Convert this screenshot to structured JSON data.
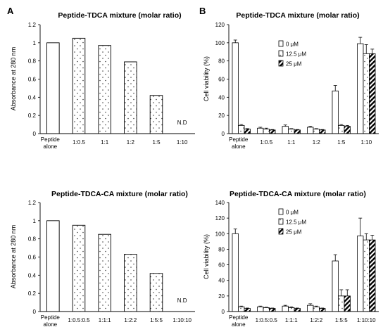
{
  "panel_labels": [
    "A",
    "B"
  ],
  "chart_data": [
    {
      "id": "A-top",
      "type": "bar",
      "title": "Peptide-TDCA mixture (molar ratio)",
      "ylabel": "Absorbance at 280 nm",
      "xlabel": "",
      "ylim": [
        0,
        1.2
      ],
      "yticks": [
        "0",
        "0.2",
        "0.4",
        "0.6",
        "0.8",
        "1",
        "1.2"
      ],
      "categories": [
        "Peptide alone",
        "1:0.5",
        "1:1",
        "1:2",
        "1:5",
        "1:10"
      ],
      "values": [
        1.0,
        1.05,
        0.97,
        0.79,
        0.42,
        null
      ],
      "patterns": [
        "plain",
        "dots",
        "dots",
        "dots",
        "dots",
        "none"
      ],
      "annotation": "N.D"
    },
    {
      "id": "B-top",
      "type": "bar",
      "title": "Peptide-TDCA mixture (molar ratio)",
      "ylabel": "Cell viability (%)",
      "xlabel": "",
      "ylim": [
        0,
        120
      ],
      "yticks": [
        "0",
        "20",
        "40",
        "60",
        "80",
        "100",
        "120"
      ],
      "categories": [
        "Peptide alone",
        "1:0.5",
        "1:1",
        "1:2",
        "1:5",
        "1:10"
      ],
      "legend": [
        "0 μM",
        "12.5 μM",
        "25 μM"
      ],
      "series": [
        {
          "name": "0 μM",
          "values": [
            100,
            6,
            8,
            7,
            47,
            99
          ],
          "errors": [
            3,
            1,
            1.5,
            1,
            6,
            7
          ],
          "pattern": "plain"
        },
        {
          "name": "12.5 μM",
          "values": [
            9,
            5,
            5,
            5,
            9,
            88
          ],
          "errors": [
            1,
            1,
            0.5,
            0.5,
            1,
            10
          ],
          "pattern": "dots"
        },
        {
          "name": "25 μM",
          "values": [
            5,
            4,
            4,
            4,
            8,
            88
          ],
          "errors": [
            0.5,
            0.5,
            0.5,
            0.5,
            1,
            5
          ],
          "pattern": "stripes"
        }
      ]
    },
    {
      "id": "A-bottom",
      "type": "bar",
      "title": "Peptide-TDCA-CA mixture (molar ratio)",
      "ylabel": "Absorbance at 280 nm",
      "xlabel": "",
      "ylim": [
        0,
        1.2
      ],
      "yticks": [
        "0",
        "0.2",
        "0.4",
        "0.6",
        "0.8",
        "1",
        "1.2"
      ],
      "categories": [
        "Peptide alone",
        "1:0.5:0.5",
        "1:1:1",
        "1:2:2",
        "1:5:5",
        "1:10:10"
      ],
      "values": [
        1.0,
        0.95,
        0.85,
        0.63,
        0.42,
        null
      ],
      "patterns": [
        "plain",
        "dots",
        "dots",
        "dots",
        "dots",
        "none"
      ],
      "annotation": "N.D"
    },
    {
      "id": "B-bottom",
      "type": "bar",
      "title": "Peptide-TDCA-CA mixture (molar ratio)",
      "ylabel": "Cell viability (%)",
      "xlabel": "",
      "ylim": [
        0,
        140
      ],
      "yticks": [
        "0",
        "20",
        "40",
        "60",
        "80",
        "100",
        "120",
        "140"
      ],
      "categories": [
        "Peptide alone",
        "1:0.5:0.5",
        "1:1:1",
        "1:2:2",
        "1:5:5",
        "1:10:10"
      ],
      "legend": [
        "0 μM",
        "12.5 μM",
        "25 μM"
      ],
      "series": [
        {
          "name": "0 μM",
          "values": [
            100,
            6,
            7,
            8,
            65,
            97
          ],
          "errors": [
            6,
            1,
            1,
            2,
            8,
            23
          ],
          "pattern": "plain"
        },
        {
          "name": "12.5 μM",
          "values": [
            6,
            5,
            5,
            6,
            20,
            92
          ],
          "errors": [
            1,
            0.5,
            1,
            1,
            8,
            8
          ],
          "pattern": "dots"
        },
        {
          "name": "25 μM",
          "values": [
            4,
            4,
            4,
            4,
            20,
            92
          ],
          "errors": [
            0.5,
            0.5,
            0.5,
            0.5,
            8,
            6
          ],
          "pattern": "stripes"
        }
      ]
    }
  ]
}
